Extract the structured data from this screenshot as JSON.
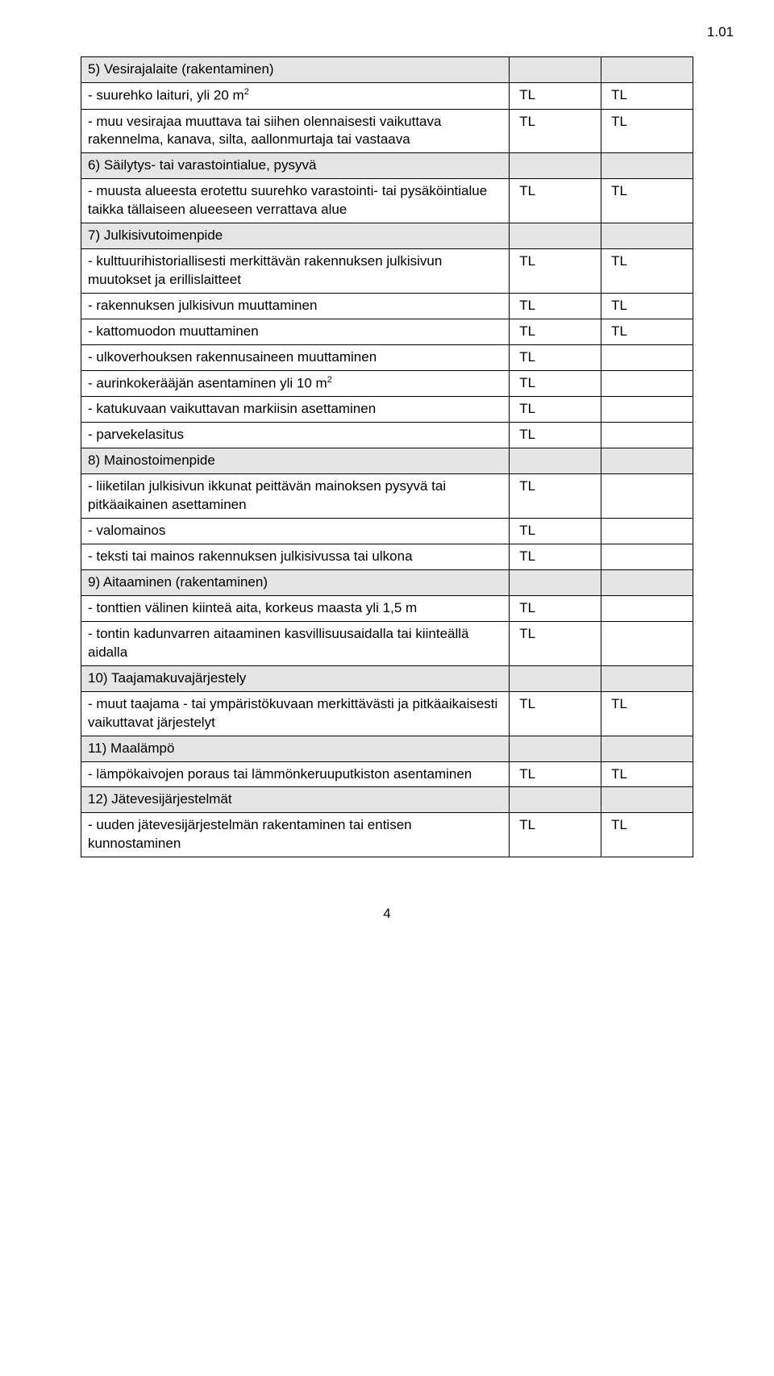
{
  "page_corner": "1.01",
  "footer_page_number": "4",
  "colors": {
    "section_bg": "#e5e5e5",
    "border": "#000000",
    "text": "#000000",
    "bg": "#ffffff"
  },
  "rows": [
    {
      "type": "section",
      "label": "5) Vesirajalaite (rakentaminen)"
    },
    {
      "type": "data",
      "label": "- suurehko laituri, yli 20 m",
      "sup": "2",
      "c1": "TL",
      "c2": "TL"
    },
    {
      "type": "data",
      "label": "- muu vesirajaa muuttava tai siihen olennaisesti vaikuttava rakennelma, kanava, silta, aallonmurtaja tai vastaava",
      "c1": "TL",
      "c2": "TL"
    },
    {
      "type": "section",
      "label": "6) Säilytys- tai varastointialue, pysyvä"
    },
    {
      "type": "data",
      "label": "- muusta alueesta erotettu suurehko varastointi- tai pysäköintialue taikka tällaiseen alueeseen verrattava alue",
      "c1": "TL",
      "c2": "TL"
    },
    {
      "type": "section",
      "label": "7) Julkisivutoimenpide"
    },
    {
      "type": "data",
      "label": "- kulttuurihistoriallisesti merkittävän rakennuksen julkisivun muutokset ja erillislaitteet",
      "c1": "TL",
      "c2": "TL"
    },
    {
      "type": "data",
      "label": "- rakennuksen julkisivun muuttaminen",
      "c1": "TL",
      "c2": "TL"
    },
    {
      "type": "data",
      "label": "- kattomuodon muuttaminen",
      "c1": "TL",
      "c2": "TL"
    },
    {
      "type": "data",
      "label": "- ulkoverhouksen rakennusaineen muuttaminen",
      "c1": "TL",
      "c2": ""
    },
    {
      "type": "data",
      "label": "- aurinkokerääjän asentaminen yli 10 m",
      "sup": "2",
      "c1": "TL",
      "c2": ""
    },
    {
      "type": "data",
      "label": "- katukuvaan vaikuttavan markiisin asettaminen",
      "c1": "TL",
      "c2": ""
    },
    {
      "type": "data",
      "label": "- parvekelasitus",
      "c1": "TL",
      "c2": ""
    },
    {
      "type": "section",
      "label": "8) Mainostoimenpide"
    },
    {
      "type": "data",
      "label": "- liiketilan julkisivun ikkunat peittävän mainoksen pysyvä tai pitkäaikainen asettaminen",
      "c1": "TL",
      "c2": ""
    },
    {
      "type": "data",
      "label": "- valomainos",
      "c1": "TL",
      "c2": ""
    },
    {
      "type": "data",
      "label": "- teksti tai mainos rakennuksen julkisivussa tai ulkona",
      "c1": "TL",
      "c2": ""
    },
    {
      "type": "section",
      "label": "9) Aitaaminen (rakentaminen)"
    },
    {
      "type": "data",
      "label": "- tonttien välinen kiinteä aita, korkeus maasta yli 1,5 m",
      "c1": "TL",
      "c2": ""
    },
    {
      "type": "data",
      "label": "- tontin kadunvarren aitaaminen kasvillisuusaidalla tai kiinteällä aidalla",
      "c1": "TL",
      "c2": ""
    },
    {
      "type": "section",
      "label": "10) Taajamakuvajärjestely"
    },
    {
      "type": "data",
      "label": "- muut taajama - tai ympäristökuvaan merkittävästi ja pitkäaikaisesti vaikuttavat järjestelyt",
      "c1": "TL",
      "c2": "TL"
    },
    {
      "type": "section",
      "label": "11) Maalämpö"
    },
    {
      "type": "data",
      "label": "- lämpökaivojen poraus tai lämmönkeruuputkiston asentaminen",
      "c1": "TL",
      "c2": "TL"
    },
    {
      "type": "section",
      "label": "12) Jätevesijärjestelmät"
    },
    {
      "type": "data",
      "label": "- uuden jätevesijärjestelmän rakentaminen tai entisen kunnostaminen",
      "c1": "TL",
      "c2": "TL"
    }
  ]
}
